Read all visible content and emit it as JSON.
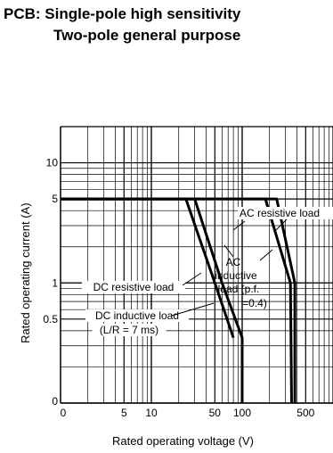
{
  "title_line1": "PCB: Single-pole high sensitivity",
  "title_line2": "Two-pole general purpose",
  "chart_data": {
    "type": "line",
    "xlabel": "Rated operating voltage (V)",
    "ylabel": "Rated operating current (A)",
    "x_scale": "log",
    "y_scale": "log",
    "x_ticks": [
      "0",
      "5",
      "10",
      "50",
      "100",
      "500"
    ],
    "y_ticks": [
      "0",
      "0.5",
      "1",
      "5",
      "10"
    ],
    "grid": true,
    "series": [
      {
        "name": "DC resistive load",
        "points": [
          [
            1,
            5
          ],
          [
            30,
            5
          ],
          [
            60,
            1
          ],
          [
            100,
            0.35
          ],
          [
            100,
            0
          ]
        ]
      },
      {
        "name": "DC inductive load (L/R = 7 ms)",
        "points": [
          [
            1,
            5
          ],
          [
            24,
            5
          ],
          [
            50,
            1
          ],
          [
            80,
            0.35
          ]
        ]
      },
      {
        "name": "AC resistive load",
        "points": [
          [
            1,
            5
          ],
          [
            240,
            5
          ],
          [
            380,
            1
          ],
          [
            380,
            0
          ]
        ]
      },
      {
        "name": "AC inductive load (p.f. =0.4)",
        "points": [
          [
            1,
            5
          ],
          [
            180,
            5
          ],
          [
            340,
            1
          ],
          [
            350,
            0
          ]
        ]
      }
    ],
    "annotations": [
      {
        "text": "AC resistive load",
        "target": "AC resistive load"
      },
      {
        "text": "AC",
        "target": "AC inductive load (p.f. =0.4)"
      },
      {
        "text": "inductive",
        "target": "AC inductive load (p.f. =0.4)"
      },
      {
        "text": "load (p.f.",
        "target": "AC inductive load (p.f. =0.4)"
      },
      {
        "text": "=0.4)",
        "target": "AC inductive load (p.f. =0.4)"
      },
      {
        "text": "DC resistive load",
        "target": "DC resistive load"
      },
      {
        "text": "DC inductive load",
        "target": "DC inductive load (L/R = 7 ms)"
      },
      {
        "text": "(L/R = 7 ms)",
        "target": "DC inductive load (L/R = 7 ms)"
      }
    ]
  }
}
